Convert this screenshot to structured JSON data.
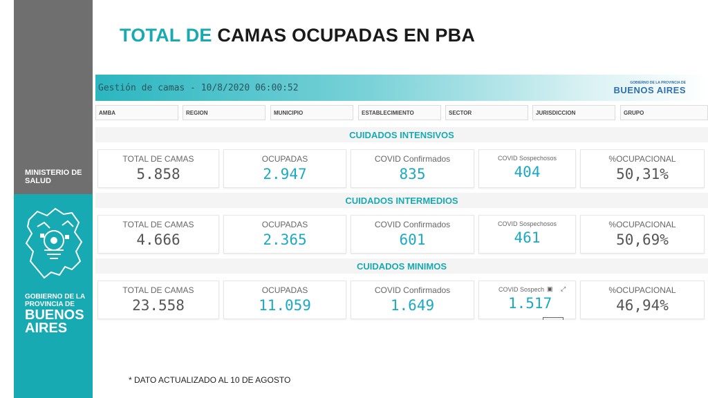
{
  "sidebar": {
    "ministry_line1": "MINISTERIO DE",
    "ministry_line2": "SALUD",
    "gob_line1": "GOBIERNO DE LA",
    "gob_line2": "PROVINCIA DE",
    "ba_line1": "BUENOS",
    "ba_line2": "AIRES"
  },
  "title": {
    "part1": "TOTAL DE",
    "part2": "CAMAS OCUPADAS EN PBA"
  },
  "dashboard": {
    "header_title": "Gestión de camas - 10/8/2020 06:00:52",
    "logo_small": "GOBIERNO DE LA PROVINCIA DE",
    "logo_main": "BUENOS AIRES",
    "filters": [
      "AMBA",
      "REGION",
      "MUNICIPIO",
      "ESTABLECIMIENTO",
      "SECTOR",
      "JURISDICCION",
      "GRUPO"
    ],
    "sections": [
      {
        "title": "CUIDADOS INTENSIVOS",
        "cards": [
          {
            "label": "TOTAL DE CAMAS",
            "value": "5.858"
          },
          {
            "label": "OCUPADAS",
            "value": "2.947"
          },
          {
            "label": "COVID Confirmados",
            "value": "835"
          },
          {
            "label": "COVID Sospechosos",
            "value": "404"
          },
          {
            "label": "%OCUPACIONAL",
            "value": "50,31%"
          }
        ]
      },
      {
        "title": "CUIDADOS INTERMEDIOS",
        "cards": [
          {
            "label": "TOTAL DE CAMAS",
            "value": "4.666"
          },
          {
            "label": "OCUPADAS",
            "value": "2.365"
          },
          {
            "label": "COVID Confirmados",
            "value": "601"
          },
          {
            "label": "COVID Sospechosos",
            "value": "461"
          },
          {
            "label": "%OCUPACIONAL",
            "value": "50,69%"
          }
        ]
      },
      {
        "title": "CUIDADOS MINIMOS",
        "cards": [
          {
            "label": "TOTAL DE CAMAS",
            "value": "23.558"
          },
          {
            "label": "OCUPADAS",
            "value": "11.059"
          },
          {
            "label": "COVID Confirmados",
            "value": "1.649"
          },
          {
            "label": "COVID Sospech",
            "value": "1.517"
          },
          {
            "label": "%OCUPACIONAL",
            "value": "46,94%"
          }
        ]
      }
    ]
  },
  "footnote": "* DATO ACTUALIZADO AL 10 DE AGOSTO",
  "colors": {
    "accent": "#17aab2",
    "sidebar_gray": "#6f6f6f",
    "value_teal": "#1aa9c2"
  },
  "icons": [
    "camera-icon",
    "expand-icon",
    "province-crest-icon"
  ]
}
